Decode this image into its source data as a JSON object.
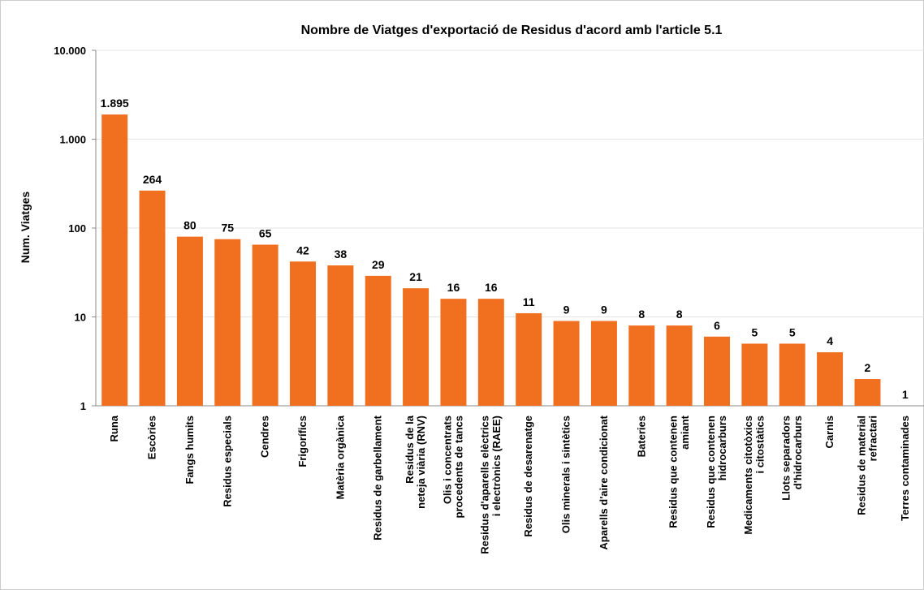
{
  "chart_data": {
    "type": "bar",
    "title": "Nombre de Viatges d'exportació de Residus d'acord amb l'article 5.1",
    "y_label": "Num. Viatges",
    "categories": [
      "Runa",
      "Escòries",
      "Fangs humits",
      "Residus especials",
      "Cendres",
      "Frigorífics",
      "Matèria orgànica",
      "Residus de garbellament",
      "Residus de la\nneteja viària (RNV)",
      "Olis i concentrats\nprocedents de tancs",
      "Residus d'aparells elèctrics\ni electrònics (RAEE)",
      "Residus de desarenatge",
      "Olis minerals i sintètics",
      "Aparells d'aire condicionat",
      "Bateries",
      "Residus que contenen\namiant",
      "Residus que contenen\nhidrocarburs",
      "Medicaments citotòxics\ni citostàtics",
      "Llots separadors\nd'hidrocarburs",
      "Carnis",
      "Residus de material\nrefractari",
      "Terres contaminades"
    ],
    "values": [
      1895,
      264,
      80,
      75,
      65,
      42,
      38,
      29,
      21,
      16,
      16,
      11,
      9,
      9,
      8,
      8,
      6,
      5,
      5,
      4,
      2,
      1
    ],
    "value_labels": [
      "1.895",
      "264",
      "80",
      "75",
      "65",
      "42",
      "38",
      "29",
      "21",
      "16",
      "16",
      "11",
      "9",
      "9",
      "8",
      "8",
      "6",
      "5",
      "5",
      "4",
      "2",
      "1"
    ],
    "color": "#f07020",
    "log_scale": true,
    "ylim": [
      1,
      10000
    ],
    "yticks": [
      1,
      10,
      100,
      {
        "value": 1000,
        "label": "1.000"
      },
      {
        "value": 10000,
        "label": "10.000"
      }
    ],
    "grid": true
  }
}
